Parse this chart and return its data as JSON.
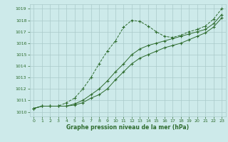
{
  "title": "Graphe pression niveau de la mer (hPa)",
  "background_color": "#cdeaea",
  "grid_color": "#aacaca",
  "line_color": "#2d6b2d",
  "x_values": [
    0,
    1,
    2,
    3,
    4,
    5,
    6,
    7,
    8,
    9,
    10,
    11,
    12,
    13,
    14,
    15,
    16,
    17,
    18,
    19,
    20,
    21,
    22,
    23
  ],
  "line_high": [
    1010.3,
    1010.5,
    1010.5,
    1010.5,
    1010.8,
    1011.2,
    1012.0,
    1013.0,
    1014.2,
    1015.3,
    1016.2,
    1017.4,
    1018.0,
    1017.9,
    1017.5,
    1017.0,
    1016.6,
    1016.5,
    1016.7,
    1017.0,
    1017.2,
    1017.5,
    1018.1,
    1019.0
  ],
  "line_mid": [
    1010.3,
    1010.5,
    1010.5,
    1010.5,
    1010.5,
    1010.7,
    1011.0,
    1011.5,
    1012.0,
    1012.7,
    1013.5,
    1014.2,
    1015.0,
    1015.5,
    1015.8,
    1016.0,
    1016.2,
    1016.4,
    1016.6,
    1016.8,
    1017.0,
    1017.2,
    1017.7,
    1018.5
  ],
  "line_low": [
    1010.3,
    1010.5,
    1010.5,
    1010.5,
    1010.5,
    1010.6,
    1010.8,
    1011.2,
    1011.5,
    1012.0,
    1012.8,
    1013.5,
    1014.2,
    1014.7,
    1015.0,
    1015.3,
    1015.6,
    1015.8,
    1016.0,
    1016.3,
    1016.6,
    1016.9,
    1017.4,
    1018.2
  ],
  "ylim": [
    1009.6,
    1019.4
  ],
  "yticks": [
    1010,
    1011,
    1012,
    1013,
    1014,
    1015,
    1016,
    1017,
    1018,
    1019
  ],
  "xticks": [
    0,
    1,
    2,
    3,
    4,
    5,
    6,
    7,
    8,
    9,
    10,
    11,
    12,
    13,
    14,
    15,
    16,
    17,
    18,
    19,
    20,
    21,
    22,
    23
  ],
  "marker_size": 2.0,
  "line_width": 0.7
}
